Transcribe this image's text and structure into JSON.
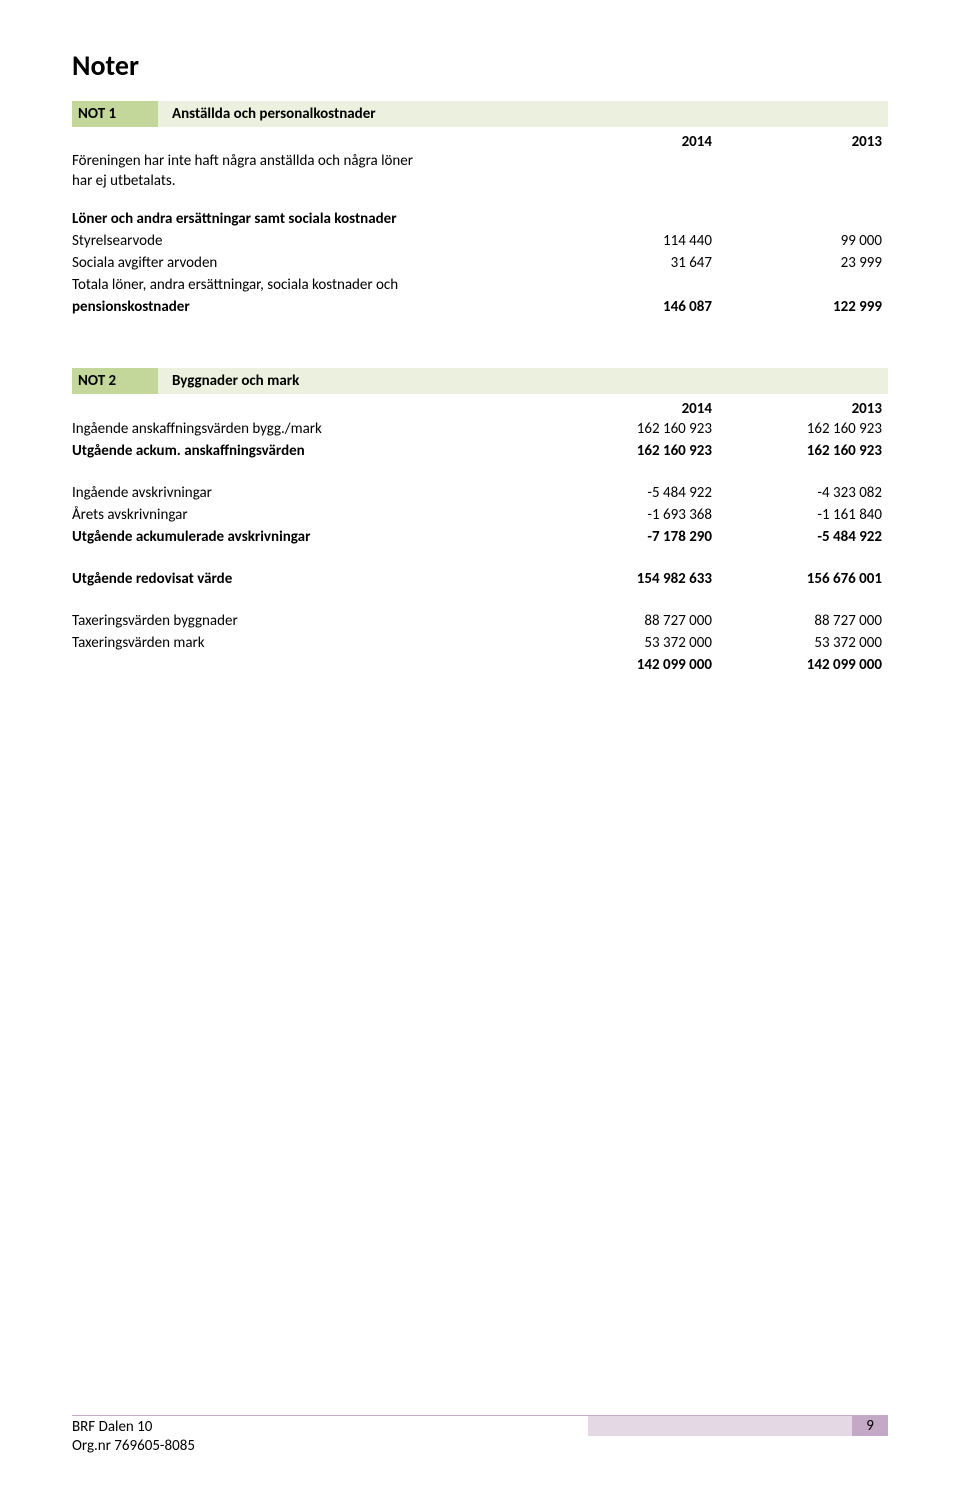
{
  "heading": "Noter",
  "note1": {
    "num": "NOT 1",
    "title": "Anställda och personalkostnader",
    "year1": "2014",
    "year2": "2013",
    "body_line1": "Föreningen har inte haft några anställda och några löner",
    "body_line2": "har ej utbetalats.",
    "subheading": "Löner och andra ersättningar samt sociala kostnader",
    "rows": [
      {
        "label": "Styrelsearvode",
        "v1": "114 440",
        "v2": "99 000"
      },
      {
        "label": "Sociala avgifter arvoden",
        "v1": "31 647",
        "v2": "23 999"
      }
    ],
    "total_row": {
      "label1": "Totala löner, andra ersättningar, sociala kostnader och",
      "label2": "pensionskostnader",
      "v1": "146 087",
      "v2": "122 999"
    }
  },
  "note2": {
    "num": "NOT 2",
    "title": "Byggnader och mark",
    "year1": "2014",
    "year2": "2013",
    "block1": [
      {
        "label": "Ingående anskaffningsvärden bygg./mark",
        "v1": "162 160 923",
        "v2": "162 160 923",
        "bold": false
      },
      {
        "label": "Utgående ackum. anskaffningsvärden",
        "v1": "162 160 923",
        "v2": "162 160 923",
        "bold": true
      }
    ],
    "block2": [
      {
        "label": "Ingående avskrivningar",
        "v1": "-5 484 922",
        "v2": "-4 323 082",
        "bold": false
      },
      {
        "label": "Årets avskrivningar",
        "v1": "-1 693 368",
        "v2": "-1 161 840",
        "bold": false
      },
      {
        "label": "Utgående ackumulerade avskrivningar",
        "v1": "-7 178 290",
        "v2": "-5 484 922",
        "bold": true
      }
    ],
    "block3": [
      {
        "label": "Utgående redovisat värde",
        "v1": "154 982 633",
        "v2": "156 676 001",
        "bold": true
      }
    ],
    "block4": [
      {
        "label": "Taxeringsvärden byggnader",
        "v1": "88 727 000",
        "v2": "88 727 000",
        "bold": false
      },
      {
        "label": "Taxeringsvärden mark",
        "v1": "53 372 000",
        "v2": "53 372 000",
        "bold": false
      },
      {
        "label": "",
        "v1": "142 099 000",
        "v2": "142 099 000",
        "bold": true
      }
    ]
  },
  "footer": {
    "org_name": "BRF Dalen 10",
    "org_nr": "Org.nr 769605-8085",
    "page": "9"
  }
}
